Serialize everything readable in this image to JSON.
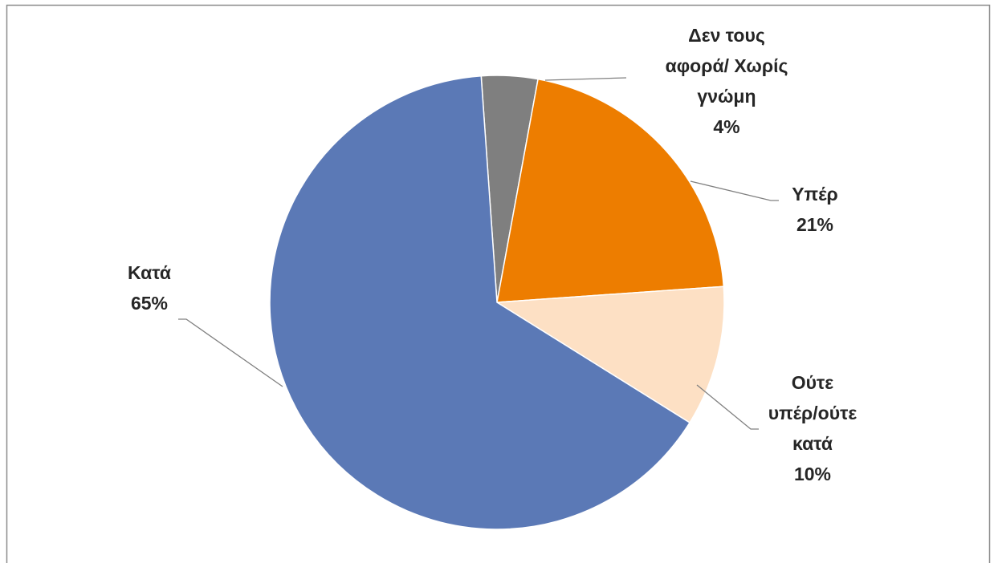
{
  "chart_data": {
    "type": "pie",
    "start_angle_deg": -4,
    "direction": "clockwise",
    "slices": [
      {
        "name": "Δεν τους αφορά/ Χωρίς γνώμη",
        "value": 4,
        "label_lines": [
          "Δεν τους",
          "αφορά/ Χωρίς",
          "γνώμη",
          "4%"
        ],
        "color": "#7f7f7f"
      },
      {
        "name": "Υπέρ",
        "value": 21,
        "label_lines": [
          "Υπέρ",
          "21%"
        ],
        "color": "#ed7d00"
      },
      {
        "name": "Ούτε υπέρ/ούτε κατά",
        "value": 10,
        "label_lines": [
          "Ούτε",
          "υπέρ/ούτε",
          "κατά",
          "10%"
        ],
        "color": "#fde0c4"
      },
      {
        "name": "Κατά",
        "value": 65,
        "label_lines": [
          "Κατά",
          "65%"
        ],
        "color": "#5b79b6"
      }
    ],
    "title": "",
    "legend": "none",
    "data_labels": "outside-with-leader-lines",
    "border_color": "#8c8c8c"
  }
}
